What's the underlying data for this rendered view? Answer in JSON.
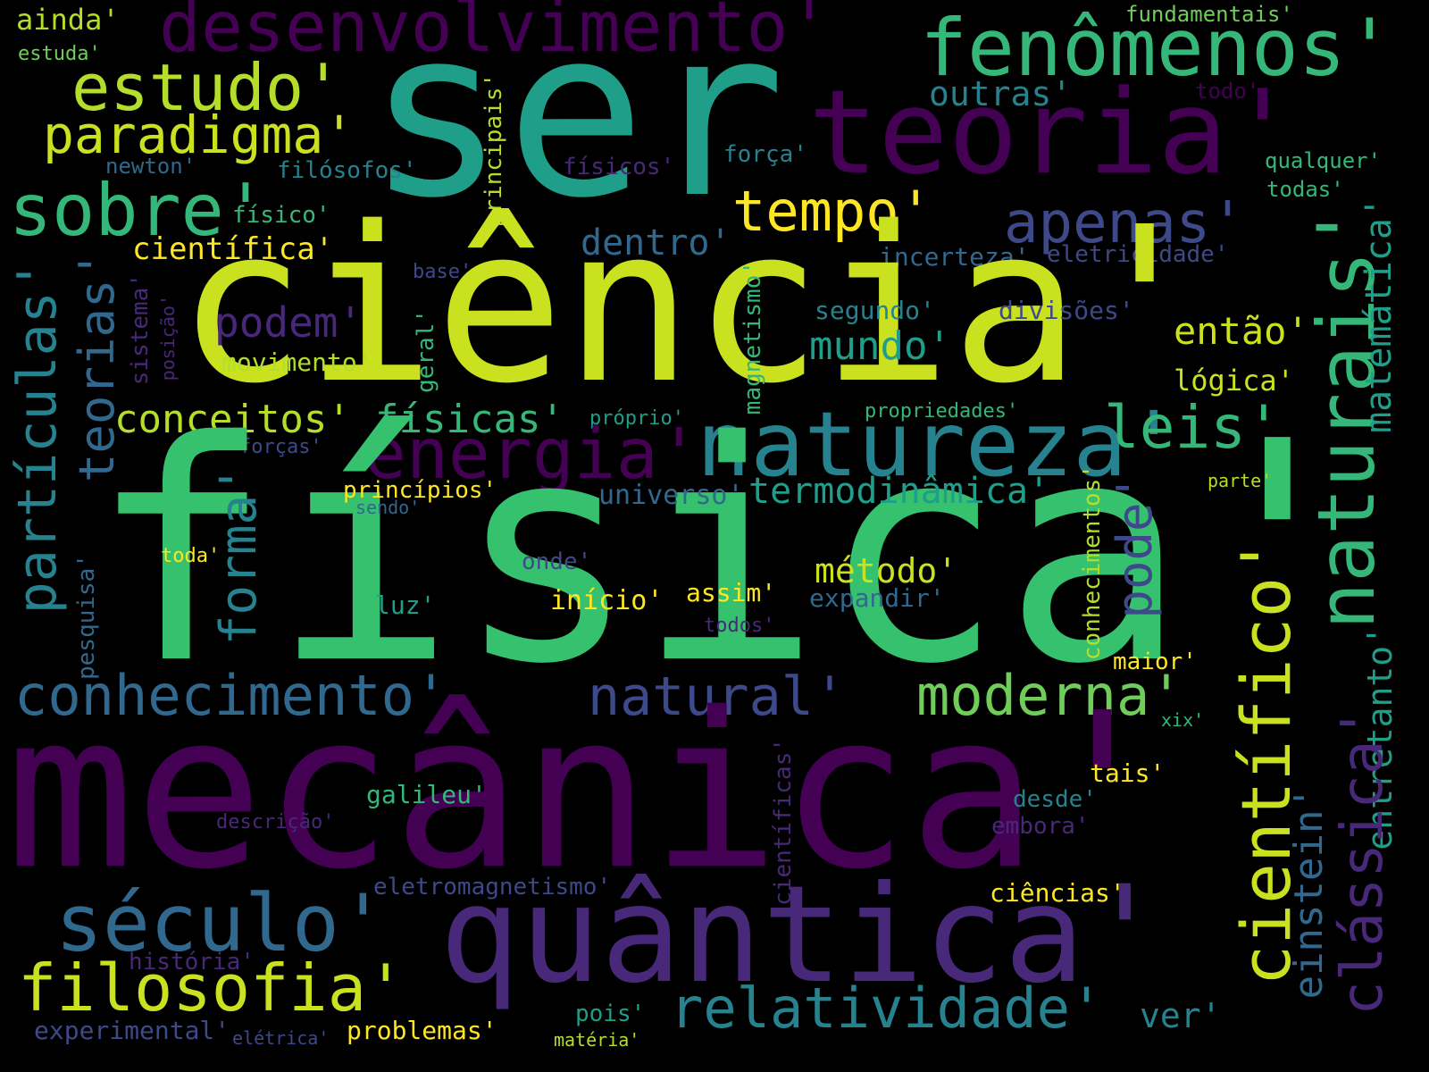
{
  "palette": {
    "background": "#000000",
    "colors": [
      "#440154",
      "#482878",
      "#3e4989",
      "#31688e",
      "#26828e",
      "#1f9e89",
      "#35b779",
      "#6ece58",
      "#b5de2b",
      "#fde725"
    ]
  },
  "words": [
    {
      "text": "ainda'"
    },
    {
      "text": "estuda'"
    },
    {
      "text": "desenvolvimento'"
    },
    {
      "text": "fenômenos'"
    },
    {
      "text": "fundamentais'"
    },
    {
      "text": "ser"
    },
    {
      "text": "estudo'"
    },
    {
      "text": "teoria'"
    },
    {
      "text": "outras'"
    },
    {
      "text": "todo'"
    },
    {
      "text": "paradigma'"
    },
    {
      "text": "newton'"
    },
    {
      "text": "filósofos'"
    },
    {
      "text": "principais'"
    },
    {
      "text": "físicos'"
    },
    {
      "text": "força'"
    },
    {
      "text": "qualquer'"
    },
    {
      "text": "todas'"
    },
    {
      "text": "sobre'"
    },
    {
      "text": "físico'"
    },
    {
      "text": "tempo'"
    },
    {
      "text": "apenas'"
    },
    {
      "text": "científica'"
    },
    {
      "text": "dentro'"
    },
    {
      "text": "incerteza'"
    },
    {
      "text": "eletricidade'"
    },
    {
      "text": "ciência'"
    },
    {
      "text": "base'"
    },
    {
      "text": "podem'"
    },
    {
      "text": "segundo'"
    },
    {
      "text": "divisões'"
    },
    {
      "text": "mundo'"
    },
    {
      "text": "então'"
    },
    {
      "text": "naturais'"
    },
    {
      "text": "matemática'"
    },
    {
      "text": "movimento'"
    },
    {
      "text": "lógica'"
    },
    {
      "text": "partículas'"
    },
    {
      "text": "teorias'"
    },
    {
      "text": "sistema'"
    },
    {
      "text": "posição'"
    },
    {
      "text": "geral'"
    },
    {
      "text": "magnetismo'"
    },
    {
      "text": "conceitos'"
    },
    {
      "text": "físicas'"
    },
    {
      "text": "próprio'"
    },
    {
      "text": "propriedades'"
    },
    {
      "text": "natureza'"
    },
    {
      "text": "leis'"
    },
    {
      "text": "forças'"
    },
    {
      "text": "energia'"
    },
    {
      "text": "física'"
    },
    {
      "text": "princípios'"
    },
    {
      "text": "universo'"
    },
    {
      "text": "termodinâmica'"
    },
    {
      "text": "sendo'"
    },
    {
      "text": "parte'"
    },
    {
      "text": "forma'"
    },
    {
      "text": "pode'"
    },
    {
      "text": "toda'"
    },
    {
      "text": "onde'"
    },
    {
      "text": "método'"
    },
    {
      "text": "conhecimentos'"
    },
    {
      "text": "luz'"
    },
    {
      "text": "início'"
    },
    {
      "text": "assim'"
    },
    {
      "text": "expandir'"
    },
    {
      "text": "todos'"
    },
    {
      "text": "pesquisa'"
    },
    {
      "text": "maior'"
    },
    {
      "text": "conhecimento'"
    },
    {
      "text": "natural'"
    },
    {
      "text": "moderna'"
    },
    {
      "text": "xix'"
    },
    {
      "text": "entretanto'"
    },
    {
      "text": "mecânica'"
    },
    {
      "text": "científico'"
    },
    {
      "text": "tais'"
    },
    {
      "text": "galileu'"
    },
    {
      "text": "desde'"
    },
    {
      "text": "descrição'"
    },
    {
      "text": "embora'"
    },
    {
      "text": "científicas'"
    },
    {
      "text": "einstein'"
    },
    {
      "text": "clássica'"
    },
    {
      "text": "eletromagnetismo'"
    },
    {
      "text": "ciências'"
    },
    {
      "text": "século'"
    },
    {
      "text": "quântica'"
    },
    {
      "text": "história'"
    },
    {
      "text": "filosofia'"
    },
    {
      "text": "relatividade'"
    },
    {
      "text": "ver'"
    },
    {
      "text": "pois'"
    },
    {
      "text": "experimental'"
    },
    {
      "text": "elétrica'"
    },
    {
      "text": "problemas'"
    },
    {
      "text": "matéria'"
    }
  ]
}
